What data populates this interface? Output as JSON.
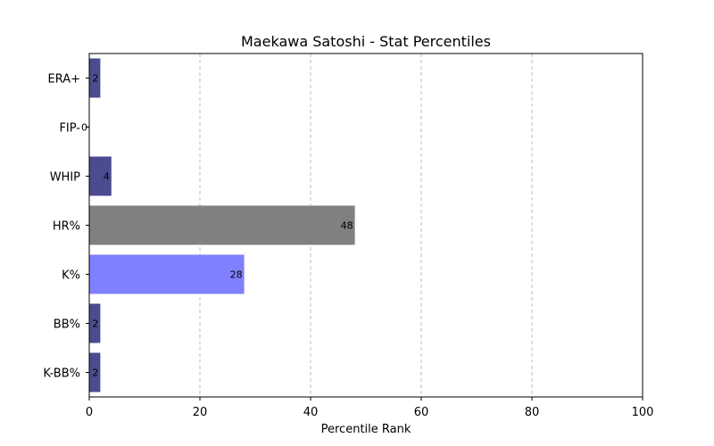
{
  "chart_data": {
    "type": "bar",
    "orientation": "horizontal",
    "title": "Maekawa Satoshi - Stat Percentiles",
    "xlabel": "Percentile Rank",
    "ylabel": "",
    "xlim": [
      0,
      100
    ],
    "xticks": [
      "0",
      "20",
      "40",
      "60",
      "80",
      "100"
    ],
    "grid": "x, dashed",
    "categories": [
      "ERA+",
      "FIP-",
      "WHIP",
      "HR%",
      "K%",
      "BB%",
      "K-BB%"
    ],
    "values": [
      2,
      0,
      4,
      48,
      28,
      2,
      2
    ],
    "value_labels": [
      "2",
      "0",
      "4",
      "48",
      "28",
      "2",
      "2"
    ],
    "bar_colors": [
      "#4b4b8f",
      "#4b4b8f",
      "#4b4b8f",
      "#808080",
      "#8080ff",
      "#4b4b8f",
      "#4b4b8f"
    ]
  }
}
